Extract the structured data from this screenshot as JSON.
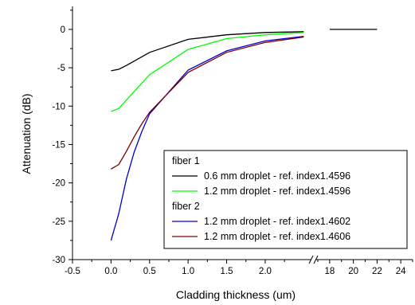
{
  "chart_data": {
    "type": "line",
    "title": "",
    "xlabel": "Cladding thickness (um)",
    "ylabel": "Attenuation (dB)",
    "ylim": [
      -30,
      3
    ],
    "y_ticks": [
      "0",
      "-5",
      "-10",
      "-15",
      "-20",
      "-25",
      "-30"
    ],
    "y_tick_values": [
      0,
      -5,
      -10,
      -15,
      -20,
      -25,
      -30
    ],
    "x_axis_segments": [
      {
        "range": [
          -0.5,
          2.6
        ],
        "ticks": [
          "-0.5",
          "0.0",
          "0.5",
          "1.0",
          "1.5",
          "2.0"
        ],
        "tick_values": [
          -0.5,
          0.0,
          0.5,
          1.0,
          1.5,
          2.0
        ]
      },
      {
        "range": [
          16.8,
          25
        ],
        "ticks": [
          "18",
          "20",
          "22",
          "24"
        ],
        "tick_values": [
          18,
          20,
          22,
          24
        ]
      }
    ],
    "axis_break": "//",
    "legend": {
      "placement": "bottom-right",
      "groups": [
        {
          "title": "fiber 1",
          "series": [
            0,
            1
          ]
        },
        {
          "title": "fiber 2",
          "series": [
            2,
            3
          ]
        }
      ]
    },
    "series": [
      {
        "name": "0.6 mm droplet - ref. index1.4596",
        "color": "#000000",
        "x": [
          0.0,
          0.1,
          0.2,
          0.5,
          1.0,
          1.5,
          2.0,
          2.5,
          18,
          22
        ],
        "y": [
          -5.4,
          -5.2,
          -4.7,
          -3.0,
          -1.3,
          -0.7,
          -0.4,
          -0.3,
          0,
          0
        ]
      },
      {
        "name": "1.2 mm droplet - ref. index1.4596",
        "color": "#00ff00",
        "x": [
          0.0,
          0.1,
          0.2,
          0.5,
          1.0,
          1.5,
          2.0,
          2.5
        ],
        "y": [
          -10.7,
          -10.3,
          -9.2,
          -5.9,
          -2.6,
          -1.2,
          -0.7,
          -0.4
        ]
      },
      {
        "name": "1.2 mm droplet - ref. index1.4602",
        "color": "#0000cc",
        "x": [
          0.0,
          0.1,
          0.2,
          0.3,
          0.4,
          0.5,
          1.0,
          1.5,
          2.0,
          2.5
        ],
        "y": [
          -27.5,
          -24.0,
          -19.5,
          -16.0,
          -13.3,
          -11.0,
          -5.3,
          -2.8,
          -1.5,
          -0.9
        ]
      },
      {
        "name": "1.2 mm droplet - ref. index1.4606",
        "color": "#800000",
        "x": [
          0.0,
          0.1,
          0.2,
          0.3,
          0.4,
          0.5,
          1.0,
          1.5,
          2.0,
          2.5
        ],
        "y": [
          -18.2,
          -17.6,
          -15.9,
          -14.0,
          -12.3,
          -10.8,
          -5.6,
          -3.0,
          -1.7,
          -1.0
        ]
      }
    ]
  }
}
